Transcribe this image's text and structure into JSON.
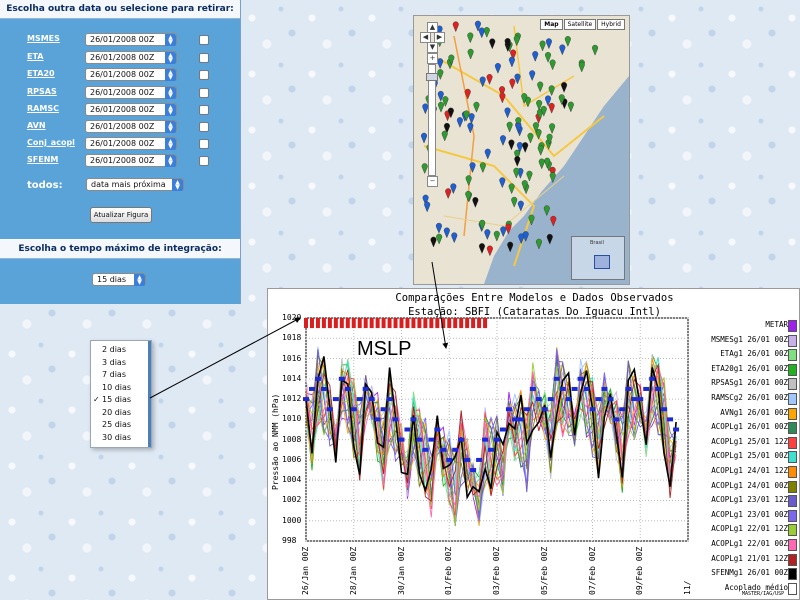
{
  "panel": {
    "header": "Escolha outra data ou selecione para retirar:",
    "models": [
      {
        "label": "MSMES",
        "date": "26/01/2008 00Z"
      },
      {
        "label": "ETA",
        "date": "26/01/2008 00Z"
      },
      {
        "label": "ETA20",
        "date": "26/01/2008 00Z"
      },
      {
        "label": "RPSAS",
        "date": "26/01/2008 00Z"
      },
      {
        "label": "RAMSC",
        "date": "26/01/2008 00Z"
      },
      {
        "label": "AVN",
        "date": "26/01/2008 00Z"
      },
      {
        "label": "Conj_acopl",
        "date": "26/01/2008 00Z"
      },
      {
        "label": "SFENM",
        "date": "26/01/2008 00Z"
      }
    ],
    "todos_label": "todos:",
    "todos_value": "data mais próxima",
    "update_button": "Atualizar Figura",
    "header2": "Escolha o tempo máximo de integração:",
    "integration_value": "15 dias"
  },
  "dropdown": {
    "items": [
      "2 dias",
      "3 dias",
      "7 dias",
      "10 dias",
      "15 dias",
      "20 dias",
      "25 dias",
      "30 dias"
    ],
    "selected": "15 dias",
    "check": "✓"
  },
  "map": {
    "tabs": [
      "Map",
      "Satellite",
      "Hybrid"
    ],
    "active_tab": "Map",
    "inset_label": "Brasil"
  },
  "overlay_label": "MSLP",
  "chart_data": {
    "type": "line",
    "title": "Comparações Entre Modelos e Dados Observados",
    "subtitle": "Estação: SBFI (Cataratas Do Iguacu Intl)",
    "ylabel": "Pressão ao NMM (hPa)",
    "ylim": [
      998,
      1020
    ],
    "yticks": [
      998,
      1000,
      1002,
      1004,
      1006,
      1008,
      1010,
      1012,
      1014,
      1016,
      1018,
      1020
    ],
    "xticks": [
      "26/Jan 00Z",
      "28/Jan 00Z",
      "30/Jan 00Z",
      "01/Feb 00Z",
      "03/Feb 00Z",
      "05/Feb 00Z",
      "07/Feb 00Z",
      "09/Feb 00Z",
      "11/"
    ],
    "x_days": [
      0,
      2,
      4,
      6,
      8,
      10,
      12,
      14,
      16
    ],
    "legend": [
      {
        "name": "METAR",
        "color": "#a020f0"
      },
      {
        "name": "MSMESg1 26/01 00Z",
        "color": "#c8b0e8"
      },
      {
        "name": "ETAg1 26/01 00Z",
        "color": "#7fe07f"
      },
      {
        "name": "ETA20g1 26/01 00Z",
        "color": "#20b020"
      },
      {
        "name": "RPSASg1 26/01 00Z",
        "color": "#c0c0c0"
      },
      {
        "name": "RAMSCg2 26/01 00Z",
        "color": "#a0c8ff"
      },
      {
        "name": "AVNg1 26/01 00Z",
        "color": "#ffa500"
      },
      {
        "name": "ACOPLg1 26/01 00Z",
        "color": "#2e8b57"
      },
      {
        "name": "ACOPLg1 25/01 12Z",
        "color": "#ff4040"
      },
      {
        "name": "ACOPLg1 25/01 00Z",
        "color": "#40e0d0"
      },
      {
        "name": "ACOPLg1 24/01 12Z",
        "color": "#ff8c00"
      },
      {
        "name": "ACOPLg1 24/01 00Z",
        "color": "#808000"
      },
      {
        "name": "ACOPLg1 23/01 12Z",
        "color": "#6a5acd"
      },
      {
        "name": "ACOPLg1 23/01 00Z",
        "color": "#7b68ee"
      },
      {
        "name": "ACOPLg1 22/01 12Z",
        "color": "#9acd32"
      },
      {
        "name": "ACOPLg1 22/01 00Z",
        "color": "#ff69b4"
      },
      {
        "name": "ACOPLg1 21/01 12Z",
        "color": "#b22222"
      },
      {
        "name": "SFENMg1 26/01 00Z",
        "color": "#000000"
      },
      {
        "name": "Acoplado médio",
        "color": "#ffffff"
      }
    ],
    "metar_markers": {
      "x_days": [
        0.0,
        0.25,
        0.5,
        0.75,
        1.0,
        1.25,
        1.5,
        1.75,
        2.0,
        2.25,
        2.5,
        2.75,
        3.0,
        3.25,
        3.5,
        3.75,
        4.0,
        4.25,
        4.5,
        4.75,
        5.0,
        5.25,
        5.5,
        5.75,
        6.0,
        6.25,
        6.5,
        6.75,
        7.0,
        7.25,
        7.5,
        7.75,
        8.0,
        8.25,
        8.5,
        8.75,
        9.0,
        9.25,
        9.5,
        9.75,
        10.0,
        10.25,
        10.5,
        10.75,
        11.0,
        11.25,
        11.5,
        11.75,
        12.0,
        12.25,
        12.5,
        12.75,
        13.0,
        13.25,
        13.5,
        13.75,
        14.0,
        14.25,
        14.5,
        14.75,
        15.0,
        15.25,
        15.5
      ],
      "y": [
        1012,
        1013,
        1014,
        1013,
        1011,
        1012,
        1014,
        1013,
        1011,
        1012,
        1013,
        1012,
        1010,
        1011,
        1012,
        1010,
        1008,
        1009,
        1010,
        1008,
        1007,
        1008,
        1009,
        1007,
        1006,
        1007,
        1008,
        1006,
        1005,
        1006,
        1008,
        1007,
        1008,
        1009,
        1011,
        1010,
        1010,
        1011,
        1013,
        1012,
        1011,
        1012,
        1014,
        1013,
        1012,
        1013,
        1014,
        1013,
        1011,
        1012,
        1013,
        1012,
        1010,
        1011,
        1013,
        1012,
        1012,
        1013,
        1014,
        1013,
        1011,
        1010,
        1009
      ]
    },
    "top_bars": {
      "x_start": 0,
      "x_end": 7.5,
      "y_top": 1020,
      "y_bottom": 1019.3
    },
    "footer": "MASTER/IAG/USP"
  }
}
